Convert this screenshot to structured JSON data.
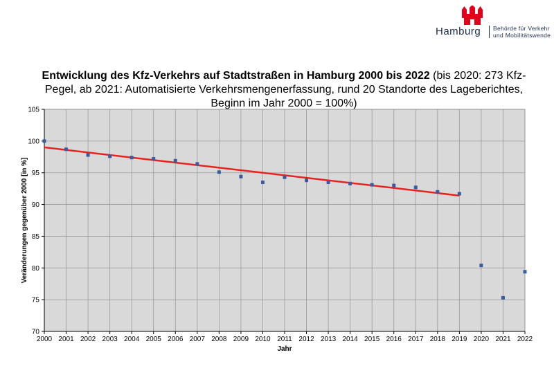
{
  "logo": {
    "name": "Hamburg",
    "line1": "Behörde für Verkehr",
    "line2": "und Mobilitätswende"
  },
  "chart_data": {
    "type": "scatter",
    "title_bold": "Entwicklung des Kfz-Verkehrs auf Stadtstraßen in Hamburg 2000 bis 2022",
    "title_rest": " (bis 2020: 273 Kfz-Pegel, ab 2021: Automatisierte Verkehrsmengenerfassung, rund 20 Standorte des Lageberichtes, Beginn im Jahr 2000 = 100%)",
    "xlabel": "Jahr",
    "ylabel": "Veränderungen gegenüber 2000 [in %]",
    "ylim": [
      70,
      105
    ],
    "xlim": [
      2000,
      2022
    ],
    "yticks": [
      70,
      75,
      80,
      85,
      90,
      95,
      100,
      105
    ],
    "xticks": [
      2000,
      2001,
      2002,
      2003,
      2004,
      2005,
      2006,
      2007,
      2008,
      2009,
      2010,
      2011,
      2012,
      2013,
      2014,
      2015,
      2016,
      2017,
      2018,
      2019,
      2020,
      2021,
      2022
    ],
    "grid": true,
    "background": "#d9d9d9",
    "series": [
      {
        "marker_color": "#3a5ba0",
        "x": [
          2000,
          2001,
          2002,
          2003,
          2004,
          2005,
          2006,
          2007,
          2008,
          2009,
          2010,
          2011,
          2012,
          2013,
          2014,
          2015,
          2016,
          2017,
          2018,
          2019,
          2020,
          2021,
          2022
        ],
        "y": [
          100,
          98.7,
          97.8,
          97.6,
          97.4,
          97.2,
          96.9,
          96.4,
          95.1,
          94.4,
          93.5,
          94.3,
          93.8,
          93.5,
          93.3,
          93.1,
          93.0,
          92.7,
          92.0,
          91.7,
          80.4,
          75.3,
          79.4
        ]
      }
    ],
    "trendline": {
      "color": "#e8231e",
      "x": [
        2000,
        2019
      ],
      "y": [
        99.0,
        91.4
      ]
    }
  }
}
